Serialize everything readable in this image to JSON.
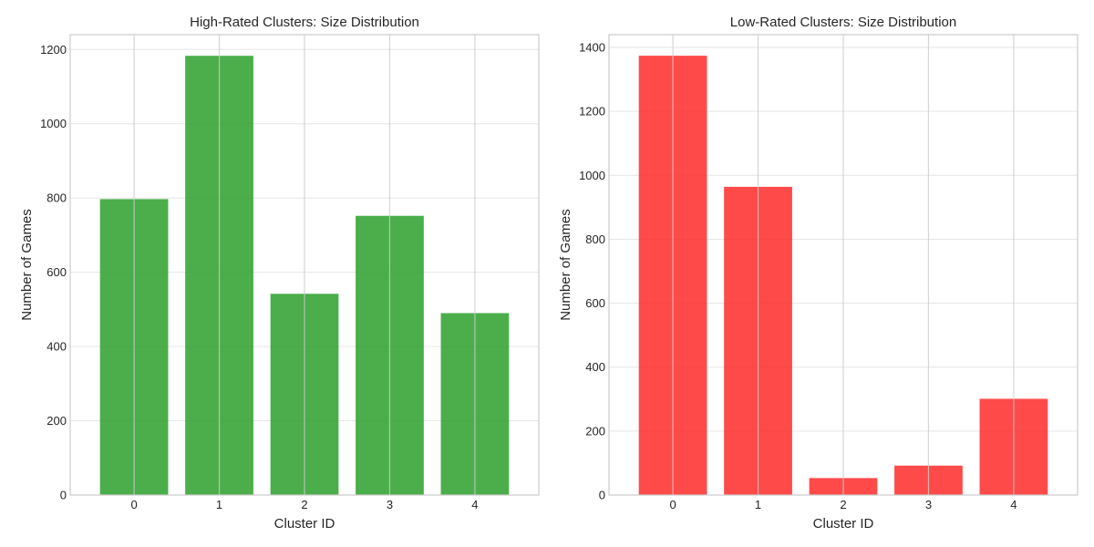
{
  "chart_data": [
    {
      "type": "bar",
      "title": "High-Rated Clusters: Size Distribution",
      "xlabel": "Cluster ID",
      "ylabel": "Number of Games",
      "categories": [
        "0",
        "1",
        "2",
        "3",
        "4"
      ],
      "values": [
        797,
        1183,
        542,
        752,
        490
      ],
      "ylim": [
        0,
        1240
      ],
      "yticks": [
        0,
        200,
        400,
        600,
        800,
        1000,
        1200
      ],
      "color": "#2ca02c",
      "grid": true
    },
    {
      "type": "bar",
      "title": "Low-Rated Clusters: Size Distribution",
      "xlabel": "Cluster ID",
      "ylabel": "Number of Games",
      "categories": [
        "0",
        "1",
        "2",
        "3",
        "4"
      ],
      "values": [
        1374,
        964,
        53,
        92,
        301
      ],
      "ylim": [
        0,
        1440
      ],
      "yticks": [
        0,
        200,
        400,
        600,
        800,
        1000,
        1200,
        1400
      ],
      "color": "#ff2a2a",
      "grid": true
    }
  ]
}
